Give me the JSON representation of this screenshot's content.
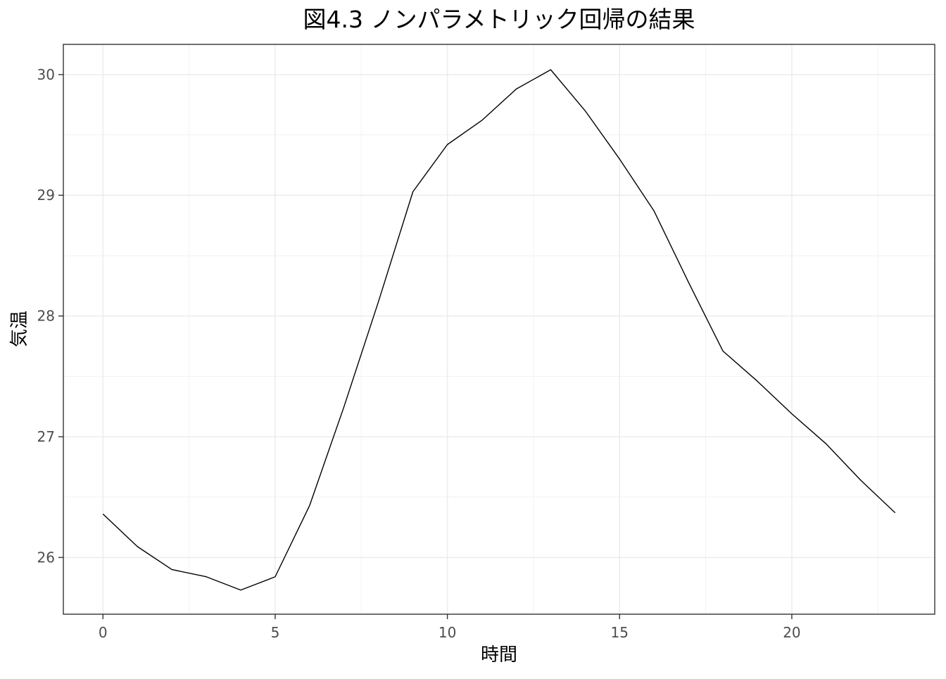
{
  "chart_data": {
    "type": "line",
    "title": "図4.3 ノンパラメトリック回帰の結果",
    "xlabel": "時間",
    "ylabel": "気温",
    "xlim": [
      -1.15,
      24.15
    ],
    "ylim": [
      25.53,
      30.25
    ],
    "xticks": [
      0,
      5,
      10,
      15,
      20
    ],
    "yticks": [
      26,
      27,
      28,
      29,
      30
    ],
    "grid": true,
    "legend": "none",
    "series": [
      {
        "x": [
          0,
          1,
          2,
          3,
          4,
          5,
          6,
          7,
          8,
          9,
          10,
          11,
          12,
          13,
          14,
          15,
          16,
          17,
          18,
          19,
          20,
          21,
          22,
          23
        ],
        "y": [
          26.36,
          26.09,
          25.9,
          25.84,
          25.73,
          25.84,
          26.43,
          27.25,
          28.12,
          29.03,
          29.42,
          29.62,
          29.88,
          30.04,
          29.7,
          29.3,
          28.87,
          28.28,
          27.71,
          27.46,
          27.19,
          26.94,
          26.64,
          26.37
        ],
        "color": "#000000"
      }
    ]
  }
}
